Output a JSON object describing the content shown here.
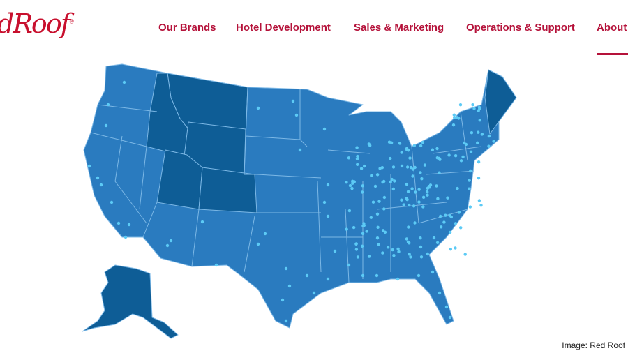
{
  "brand": {
    "logo_text": "dRoof",
    "logo_mark": "®"
  },
  "nav": {
    "items": [
      {
        "label": "Our Brands"
      },
      {
        "label": "Hotel Development"
      },
      {
        "label": "Sales & Marketing"
      },
      {
        "label": "Operations & Support"
      },
      {
        "label": "About",
        "active": true
      }
    ]
  },
  "map": {
    "base_color": "#2a7bbf",
    "highlight_color": "#0e5d96",
    "border_color": "#7cb8e6",
    "dot_color": "#5ccaf5"
  },
  "credit": "Image: Red Roof",
  "colors": {
    "brand_red": "#b5123a"
  }
}
